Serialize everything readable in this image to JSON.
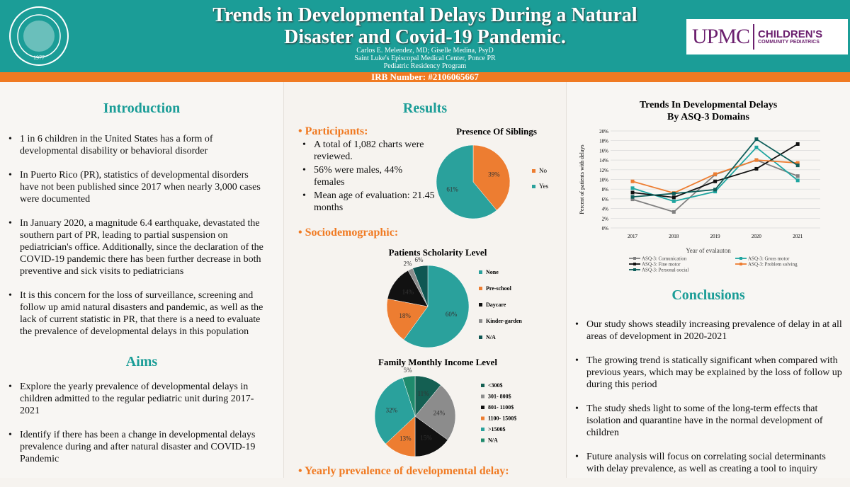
{
  "header": {
    "title": "Trends in Developmental Delays During a Natural Disaster and Covid-19 Pandemic.",
    "authors": "Carlos E. Melendez, MD; Giselle Medina, PsyD",
    "institution": "Saint Luke's Episcopal Medical Center, Ponce PR",
    "program": "Pediatric Residency Program",
    "irb": "IRB Number: #2106065667",
    "seal_text": "PONCE HEALTH SCIENCES UNIVERSITY 1977",
    "logo": {
      "upmc": "UPMC",
      "line1": "CHILDREN'S",
      "line2": "COMMUNITY PEDIATRICS"
    }
  },
  "intro": {
    "heading": "Introduction",
    "items": [
      "1 in 6 children in the United States has a form of developmental disability or behavioral disorder",
      "In Puerto Rico (PR), statistics of developmental disorders have not been published since 2017 when nearly 3,000 cases were documented",
      "In January 2020, a magnitude 6.4 earthquake, devastated the southern part of PR, leading to partial suspension on pediatrician's office. Additionally, since the declaration of the COVID-19 pandemic there has been further decrease in both preventive and sick visits to pediatricians",
      "It is this concern for the loss of surveillance, screening and follow up amid natural disasters and pandemic, as well as the lack of current statistic in PR, that there is a need to evaluate the prevalence of developmental delays in this population"
    ]
  },
  "aims": {
    "heading": "Aims",
    "items": [
      "Explore the yearly prevalence of developmental delays in children admitted to the regular pediatric unit during 2017-2021",
      "Identify if there has been a change in developmental delays prevalence during and after natural disaster and COVID-19 Pandemic"
    ]
  },
  "results": {
    "heading": "Results",
    "participants_label": "Participants:",
    "participants": [
      "A total of 1,082 charts were reviewed.",
      "56% were males, 44% females",
      "Mean age of evaluation: 21.45 months"
    ],
    "socio_label": "Sociodemographic:",
    "yearly_label": "Yearly prevalence of developmental delay:"
  },
  "conclusions": {
    "heading": "Conclusions",
    "items": [
      "Our study shows steadily increasing prevalence of delay in at all areas of development in 2020-2021",
      "The growing trend is statically significant when compared with previous years, which may be explained by the loss of follow up during this period",
      "The study sheds light to some of the long-term effects that isolation and quarantine have in the normal development of children",
      "Future analysis will focus on correlating social determinants with delay prevalence, as well as creating a tool to inquiry"
    ]
  },
  "colors": {
    "teal": "#1b9d97",
    "orange": "#f07a22"
  },
  "chart_data": [
    {
      "type": "pie",
      "title": "Presence Of Siblings",
      "labels": [
        "No",
        "Yes"
      ],
      "values": [
        39,
        61
      ],
      "colors": [
        "#ed7d31",
        "#2aa19c"
      ],
      "legend": "right"
    },
    {
      "type": "pie",
      "title": "Patients Scholarity Level",
      "labels": [
        "None",
        "Pre-school",
        "Daycare",
        "Kinder-garden",
        "N/A"
      ],
      "values": [
        60,
        18,
        14,
        2,
        6
      ],
      "colors": [
        "#2aa19c",
        "#ed7d31",
        "#111111",
        "#8c8c8c",
        "#0f5753"
      ],
      "legend": "right"
    },
    {
      "type": "pie",
      "title": "Family Monthly Income Level",
      "labels": [
        "<300$",
        "301- 800$",
        "801- 1100$",
        "1100- 1500$",
        ">1500$",
        "N/A"
      ],
      "values": [
        11,
        24,
        15,
        13,
        32,
        5
      ],
      "colors": [
        "#145f52",
        "#8c8c8c",
        "#111111",
        "#ed7d31",
        "#2aa19c",
        "#1f8a6c"
      ],
      "legend": "right"
    },
    {
      "type": "line",
      "title": "Trends In Developmental Delays By ASQ-3 Domains",
      "xlabel": "Year of evalauton",
      "ylabel": "Percent of patients with delays",
      "categories": [
        "2017",
        "2018",
        "2019",
        "2020",
        "2021"
      ],
      "ylim": [
        0,
        20
      ],
      "yticks": [
        "0%",
        "2%",
        "4%",
        "6%",
        "8%",
        "10%",
        "12%",
        "14%",
        "16%",
        "18%",
        "20%"
      ],
      "grid": true,
      "legend": "bottom",
      "series": [
        {
          "name": "ASQ-3: Comunication",
          "values": [
            5.9,
            3.3,
            11.0,
            14.0,
            10.7
          ],
          "color": "#808080"
        },
        {
          "name": "ASQ-3: Gross motor",
          "values": [
            8.2,
            5.5,
            7.5,
            16.6,
            9.8
          ],
          "color": "#1fa5a0"
        },
        {
          "name": "ASQ-3: Fine motor",
          "values": [
            7.3,
            6.3,
            9.6,
            12.2,
            17.3
          ],
          "color": "#111111"
        },
        {
          "name": "ASQ-3: Problem solving",
          "values": [
            9.6,
            7.2,
            11.1,
            14.0,
            13.4
          ],
          "color": "#ed7d31"
        },
        {
          "name": "ASQ-3: Personal-social",
          "values": [
            6.4,
            7.1,
            7.9,
            18.3,
            12.9
          ],
          "color": "#0e5e5a"
        }
      ]
    }
  ]
}
